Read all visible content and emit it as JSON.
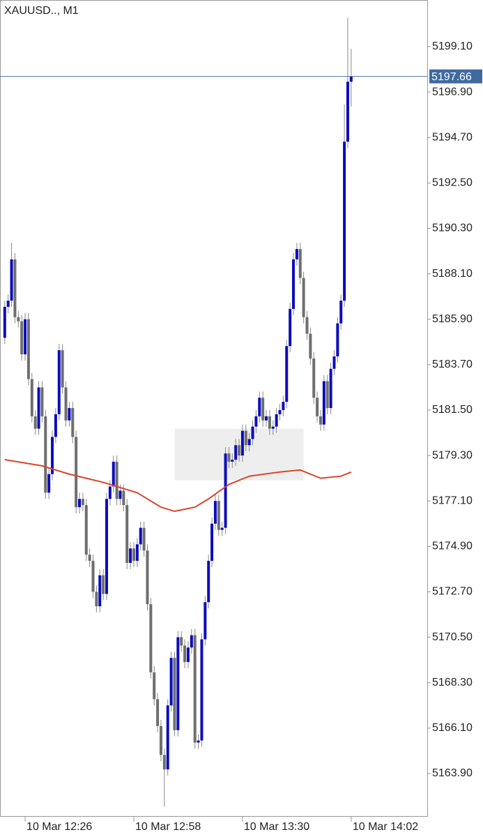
{
  "chart_data": {
    "type": "candlestick",
    "title": "XAUUSD.., M1",
    "x": [
      740,
      741,
      742,
      743,
      744,
      745,
      746,
      747,
      748,
      749,
      750,
      751,
      752,
      753,
      754,
      755,
      756,
      757,
      758,
      759,
      760,
      761,
      762,
      763,
      764,
      765,
      766,
      767,
      768,
      769,
      770,
      771,
      772,
      773,
      774,
      775,
      776,
      777,
      778,
      779,
      780,
      781,
      782,
      783,
      784,
      785,
      786,
      787,
      788,
      789,
      790,
      791,
      792,
      793,
      794,
      795,
      796,
      797,
      798,
      799,
      800,
      801,
      802,
      803,
      804,
      805,
      806,
      807,
      808,
      809,
      810,
      811,
      812,
      813,
      814,
      815,
      816,
      817,
      818,
      819,
      820,
      821,
      822,
      823,
      824,
      825,
      826,
      827,
      828,
      829,
      830,
      831,
      832,
      833,
      834,
      835,
      836,
      837,
      838,
      839,
      840,
      841,
      842
    ],
    "open": [
      5185.0,
      5186.5,
      5186.8,
      5188.8,
      5186.0,
      5185.8,
      5184.2,
      5185.9,
      5183.0,
      5181.2,
      5180.6,
      5182.6,
      5181.2,
      5177.5,
      5178.4,
      5180.2,
      5181.3,
      5184.4,
      5182.6,
      5181.0,
      5181.6,
      5180.2,
      5176.8,
      5177.2,
      5176.9,
      5174.5,
      5174.2,
      5172.7,
      5172.0,
      5173.5,
      5172.6,
      5177.2,
      5177.8,
      5179.0,
      5177.2,
      5177.6,
      5176.9,
      5174.1,
      5174.8,
      5174.2,
      5175.0,
      5175.8,
      5174.7,
      5172.1,
      5168.8,
      5167.5,
      5166.2,
      5164.8,
      5164.1,
      5167.2,
      5169.5,
      5166.0,
      5170.5,
      5170.1,
      5169.3,
      5170.0,
      5170.6,
      5165.4,
      5165.5,
      5170.4,
      5172.2,
      5174.2,
      5176.0,
      5177.1,
      5175.7,
      5175.8,
      5179.4,
      5179.0,
      5179.1,
      5179.8,
      5179.3,
      5180.5,
      5179.8,
      5180.1,
      5180.7,
      5181.2,
      5182.1,
      5181.0,
      5181.2,
      5180.6,
      5180.7,
      5181.3,
      5181.5,
      5181.9,
      5184.6,
      5186.4,
      5188.8,
      5189.3,
      5187.9,
      5186.0,
      5185.2,
      5184.0,
      5182.1,
      5181.2,
      5180.8,
      5182.9,
      5181.6,
      5183.5,
      5184.1,
      5185.7,
      5186.8,
      5194.5,
      5197.4
    ],
    "high": [
      5186.8,
      5187.1,
      5189.6,
      5189.1,
      5186.3,
      5186.1,
      5186.2,
      5186.2,
      5183.3,
      5181.5,
      5182.9,
      5182.9,
      5181.5,
      5178.7,
      5180.5,
      5181.6,
      5184.7,
      5184.7,
      5182.9,
      5181.9,
      5181.9,
      5180.5,
      5177.5,
      5177.5,
      5177.2,
      5174.8,
      5174.5,
      5173.0,
      5173.8,
      5173.8,
      5177.5,
      5178.1,
      5179.3,
      5179.3,
      5177.9,
      5177.9,
      5177.2,
      5175.1,
      5175.1,
      5175.3,
      5176.1,
      5176.1,
      5175.0,
      5172.4,
      5169.1,
      5167.8,
      5166.5,
      5165.1,
      5167.5,
      5169.8,
      5169.8,
      5170.8,
      5170.8,
      5170.4,
      5170.3,
      5170.9,
      5170.9,
      5165.8,
      5170.7,
      5172.5,
      5174.5,
      5176.3,
      5177.4,
      5177.4,
      5176.1,
      5179.7,
      5179.7,
      5179.4,
      5180.1,
      5180.1,
      5180.8,
      5180.8,
      5180.4,
      5181.0,
      5181.5,
      5182.4,
      5182.4,
      5181.5,
      5181.5,
      5181.0,
      5181.6,
      5181.8,
      5182.2,
      5184.9,
      5186.7,
      5189.1,
      5189.6,
      5189.6,
      5188.2,
      5186.3,
      5185.5,
      5184.3,
      5182.4,
      5181.5,
      5183.2,
      5183.2,
      5183.8,
      5184.4,
      5186.0,
      5187.1,
      5196.3,
      5200.5,
      5199.0
    ],
    "low": [
      5184.7,
      5186.2,
      5186.5,
      5185.7,
      5185.5,
      5183.9,
      5183.9,
      5182.7,
      5180.9,
      5180.3,
      5180.3,
      5180.9,
      5177.2,
      5177.2,
      5178.1,
      5179.9,
      5181.0,
      5182.3,
      5180.7,
      5180.7,
      5179.9,
      5176.5,
      5176.5,
      5176.6,
      5174.2,
      5173.9,
      5172.4,
      5171.7,
      5171.7,
      5172.3,
      5172.3,
      5176.9,
      5177.5,
      5176.9,
      5176.9,
      5176.6,
      5173.8,
      5173.8,
      5173.9,
      5173.9,
      5174.7,
      5174.4,
      5171.8,
      5168.5,
      5167.2,
      5165.9,
      5164.5,
      5162.3,
      5163.8,
      5166.9,
      5165.7,
      5165.7,
      5169.8,
      5169.0,
      5169.0,
      5169.7,
      5165.1,
      5165.1,
      5165.2,
      5170.1,
      5171.9,
      5173.9,
      5175.7,
      5175.4,
      5175.4,
      5175.5,
      5178.7,
      5178.7,
      5178.8,
      5179.0,
      5179.0,
      5179.5,
      5179.5,
      5179.8,
      5180.4,
      5180.9,
      5180.7,
      5180.7,
      5180.3,
      5180.3,
      5180.4,
      5181.0,
      5181.2,
      5181.6,
      5184.3,
      5186.1,
      5188.5,
      5187.6,
      5185.7,
      5184.9,
      5183.7,
      5181.8,
      5180.9,
      5180.5,
      5180.5,
      5181.3,
      5181.3,
      5183.2,
      5183.8,
      5185.4,
      5186.5,
      5194.2,
      5196.2
    ],
    "close": [
      5186.5,
      5186.8,
      5188.8,
      5186.0,
      5185.8,
      5184.2,
      5185.9,
      5183.0,
      5181.2,
      5180.6,
      5182.6,
      5181.2,
      5177.5,
      5178.4,
      5180.2,
      5181.3,
      5184.4,
      5182.6,
      5181.0,
      5181.6,
      5180.2,
      5176.8,
      5177.2,
      5176.9,
      5174.5,
      5174.2,
      5172.7,
      5172.0,
      5173.5,
      5172.6,
      5177.2,
      5177.8,
      5179.0,
      5177.2,
      5177.6,
      5176.9,
      5174.1,
      5174.8,
      5174.2,
      5175.0,
      5175.8,
      5174.7,
      5172.1,
      5168.8,
      5167.5,
      5166.2,
      5164.8,
      5164.1,
      5167.2,
      5169.5,
      5166.0,
      5170.5,
      5170.1,
      5169.3,
      5170.0,
      5170.6,
      5165.4,
      5165.5,
      5170.4,
      5172.2,
      5174.2,
      5176.0,
      5177.1,
      5175.7,
      5175.8,
      5179.4,
      5179.0,
      5179.1,
      5179.8,
      5179.3,
      5180.5,
      5179.8,
      5180.1,
      5180.7,
      5181.2,
      5182.1,
      5181.0,
      5181.2,
      5180.6,
      5180.7,
      5181.3,
      5181.5,
      5181.9,
      5184.6,
      5186.4,
      5188.8,
      5189.3,
      5187.9,
      5186.0,
      5185.2,
      5184.0,
      5182.1,
      5181.2,
      5180.8,
      5182.9,
      5181.6,
      5183.5,
      5184.1,
      5185.7,
      5186.8,
      5194.5,
      5197.4,
      5197.66
    ],
    "up_color": "#0c0cbf",
    "down_color": "#6e6e6e",
    "moving_average": {
      "color": "#d9452b",
      "x": [
        740,
        751,
        759,
        769,
        779,
        786,
        790,
        796,
        800,
        806,
        812,
        821,
        827,
        833,
        839,
        842
      ],
      "values": [
        5179.1,
        5178.8,
        5178.4,
        5178.0,
        5177.5,
        5176.8,
        5176.6,
        5176.8,
        5177.2,
        5177.9,
        5178.3,
        5178.5,
        5178.6,
        5178.2,
        5178.3,
        5178.5
      ]
    },
    "zone": {
      "color": "#eeeeee",
      "x": [
        790,
        828
      ],
      "y": [
        5178.1,
        5180.6
      ]
    },
    "last_price": 5197.66,
    "last_price_color": "#3f6aa0",
    "xlim": [
      738.6,
      864.4
    ],
    "ylim": [
      5161.84,
      5201.36
    ],
    "xticks": [
      {
        "value": 746,
        "label": "10 Mar 12:26"
      },
      {
        "value": 778,
        "label": "10 Mar 12:58"
      },
      {
        "value": 810,
        "label": "10 Mar 13:30"
      },
      {
        "value": 842,
        "label": "10 Mar 14:02"
      }
    ],
    "yticks": [
      {
        "value": 5199.1,
        "label": "5199.10"
      },
      {
        "value": 5196.9,
        "label": "5196.90"
      },
      {
        "value": 5194.7,
        "label": "5194.70"
      },
      {
        "value": 5192.5,
        "label": "5192.50"
      },
      {
        "value": 5190.3,
        "label": "5190.30"
      },
      {
        "value": 5188.1,
        "label": "5188.10"
      },
      {
        "value": 5185.9,
        "label": "5185.90"
      },
      {
        "value": 5183.7,
        "label": "5183.70"
      },
      {
        "value": 5181.5,
        "label": "5181.50"
      },
      {
        "value": 5179.3,
        "label": "5179.30"
      },
      {
        "value": 5177.1,
        "label": "5177.10"
      },
      {
        "value": 5174.9,
        "label": "5174.90"
      },
      {
        "value": 5172.7,
        "label": "5172.70"
      },
      {
        "value": 5170.5,
        "label": "5170.50"
      },
      {
        "value": 5168.3,
        "label": "5168.30"
      },
      {
        "value": 5166.1,
        "label": "5166.10"
      },
      {
        "value": 5163.9,
        "label": "5163.90"
      }
    ]
  }
}
